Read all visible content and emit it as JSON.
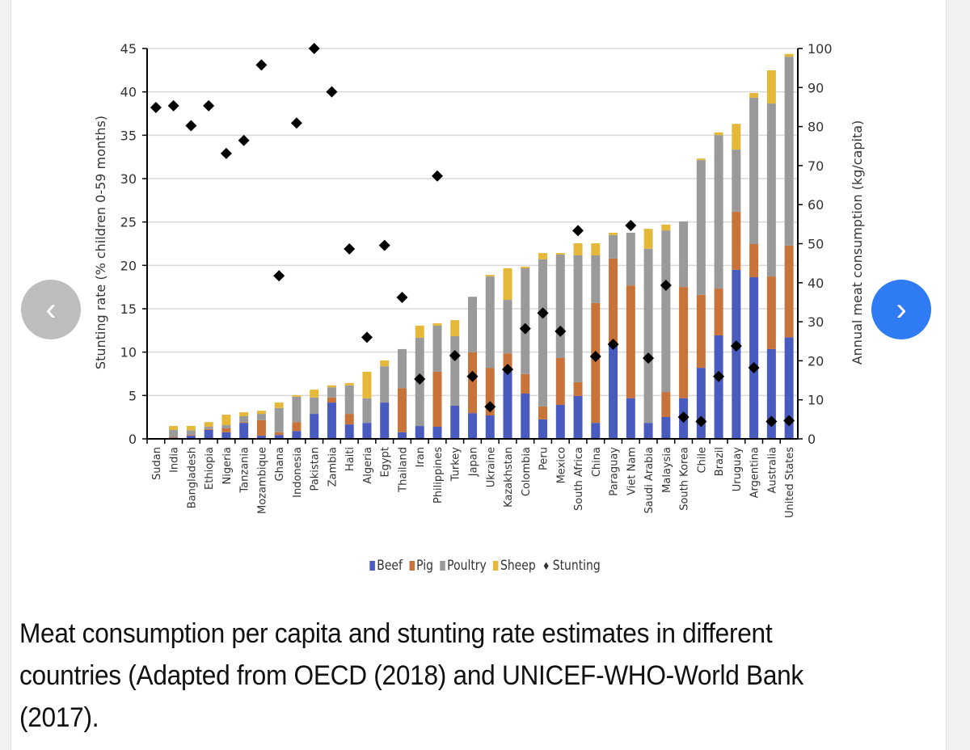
{
  "navigation": {
    "prev_icon": "chevron-left-icon",
    "next_icon": "chevron-right-icon",
    "prev_glyph": "‹",
    "next_glyph": "›"
  },
  "caption": "Meat consumption per capita and stunting rate estimates in different countries (Adapted from OECD (2018) and UNICEF-WHO-World Bank (2017).",
  "colors": {
    "beef": "#4a5bbf",
    "pig": "#c8733a",
    "poultry": "#9a9a9a",
    "sheep": "#e5b83a",
    "stunting": "#000000",
    "next_button": "#2f7bf3",
    "prev_button": "#bdbdbd"
  },
  "chart_data": {
    "type": "bar",
    "stacked": true,
    "grid": true,
    "legend_position": "bottom",
    "ylabel": "Stunting rate (% children 0-59 months)",
    "y2label": "Annual meat consumption (kg/capita)",
    "ylim": [
      0,
      45
    ],
    "y2lim": [
      0,
      100
    ],
    "yticks": [
      "0",
      "5",
      "10",
      "15",
      "20",
      "25",
      "30",
      "35",
      "40",
      "45"
    ],
    "y2ticks": [
      "0",
      "10",
      "20",
      "30",
      "40",
      "50",
      "60",
      "70",
      "80",
      "90",
      "100"
    ],
    "categories": [
      "Sudan",
      "India",
      "Bangladesh",
      "Ethiopia",
      "Nigeria",
      "Tanzania",
      "Mozambique",
      "Ghana",
      "Indonesia",
      "Pakistan",
      "Zambia",
      "Haiti",
      "Algeria",
      "Egypt",
      "Thailand",
      "Iran",
      "Philippines",
      "Turkey",
      "Japan",
      "Ukraine",
      "Kazakhstan",
      "Colombia",
      "Peru",
      "Mexico",
      "South Africa",
      "China",
      "Paraguay",
      "Viet Nam",
      "Saudi Arabia",
      "Malaysia",
      "South Korea",
      "Chile",
      "Brazil",
      "Uruguay",
      "Argentina",
      "Australia",
      "United States"
    ],
    "series": [
      {
        "name": "Beef",
        "axis": "right",
        "type": "bar",
        "values": [
          0,
          0.3,
          0.8,
          2.3,
          1.7,
          4.1,
          0.8,
          1.0,
          2.0,
          6.4,
          9.3,
          3.7,
          4.1,
          9.3,
          1.7,
          3.3,
          3.1,
          8.5,
          6.6,
          6.0,
          17.2,
          11.6,
          5.0,
          8.7,
          11.0,
          4.1,
          24.0,
          10.4,
          4.1,
          5.6,
          10.4,
          18.2,
          26.5,
          43.3,
          41.4,
          23.0,
          26.0
        ]
      },
      {
        "name": "Pig",
        "axis": "right",
        "type": "bar",
        "values": [
          0,
          0.2,
          0.2,
          0.2,
          1.0,
          0.2,
          4.0,
          0.7,
          2.3,
          0,
          1.3,
          2.7,
          0,
          0,
          11.3,
          0,
          14.1,
          0,
          15.6,
          12.2,
          4.7,
          5.0,
          3.3,
          12.0,
          3.5,
          30.7,
          22.2,
          28.9,
          0,
          6.4,
          28.5,
          18.7,
          12.0,
          14.9,
          8.5,
          18.6,
          23.5
        ]
      },
      {
        "name": "Poultry",
        "axis": "right",
        "type": "bar",
        "values": [
          0,
          1.8,
          1.2,
          0.6,
          0.8,
          1.5,
          1.6,
          6.2,
          6.5,
          4.2,
          2.6,
          7.3,
          6.3,
          9.3,
          10.0,
          22.6,
          11.8,
          17.8,
          14.2,
          23.4,
          13.7,
          27.1,
          37.7,
          26.5,
          32.5,
          12.2,
          6.0,
          13.5,
          44.6,
          41.4,
          16.8,
          34.5,
          39.3,
          15.9,
          37.5,
          44.3,
          48.4
        ]
      },
      {
        "name": "Sheep",
        "axis": "right",
        "type": "bar",
        "values": [
          0,
          1.0,
          1.1,
          1.2,
          2.7,
          1.0,
          0.8,
          1.4,
          0.4,
          2.0,
          0.5,
          0.6,
          6.8,
          1.5,
          0,
          3.1,
          0.6,
          4.1,
          0,
          0.4,
          8.1,
          0.4,
          1.6,
          0.4,
          3.1,
          3.1,
          0.6,
          0,
          5.1,
          1.5,
          0,
          0.4,
          0.7,
          6.6,
          1.2,
          8.5,
          0.7
        ]
      },
      {
        "name": "Stunting",
        "axis": "left",
        "type": "scatter",
        "values": [
          38.2,
          38.4,
          36.1,
          38.4,
          32.9,
          34.4,
          43.1,
          18.8,
          36.4,
          45.0,
          40.0,
          21.9,
          11.7,
          22.3,
          16.3,
          6.9,
          30.3,
          9.6,
          7.2,
          3.7,
          8.0,
          12.7,
          14.5,
          12.4,
          24.0,
          9.5,
          10.9,
          24.6,
          9.3,
          17.7,
          2.5,
          2.0,
          7.2,
          10.7,
          8.2,
          2.0,
          2.1
        ]
      }
    ]
  }
}
